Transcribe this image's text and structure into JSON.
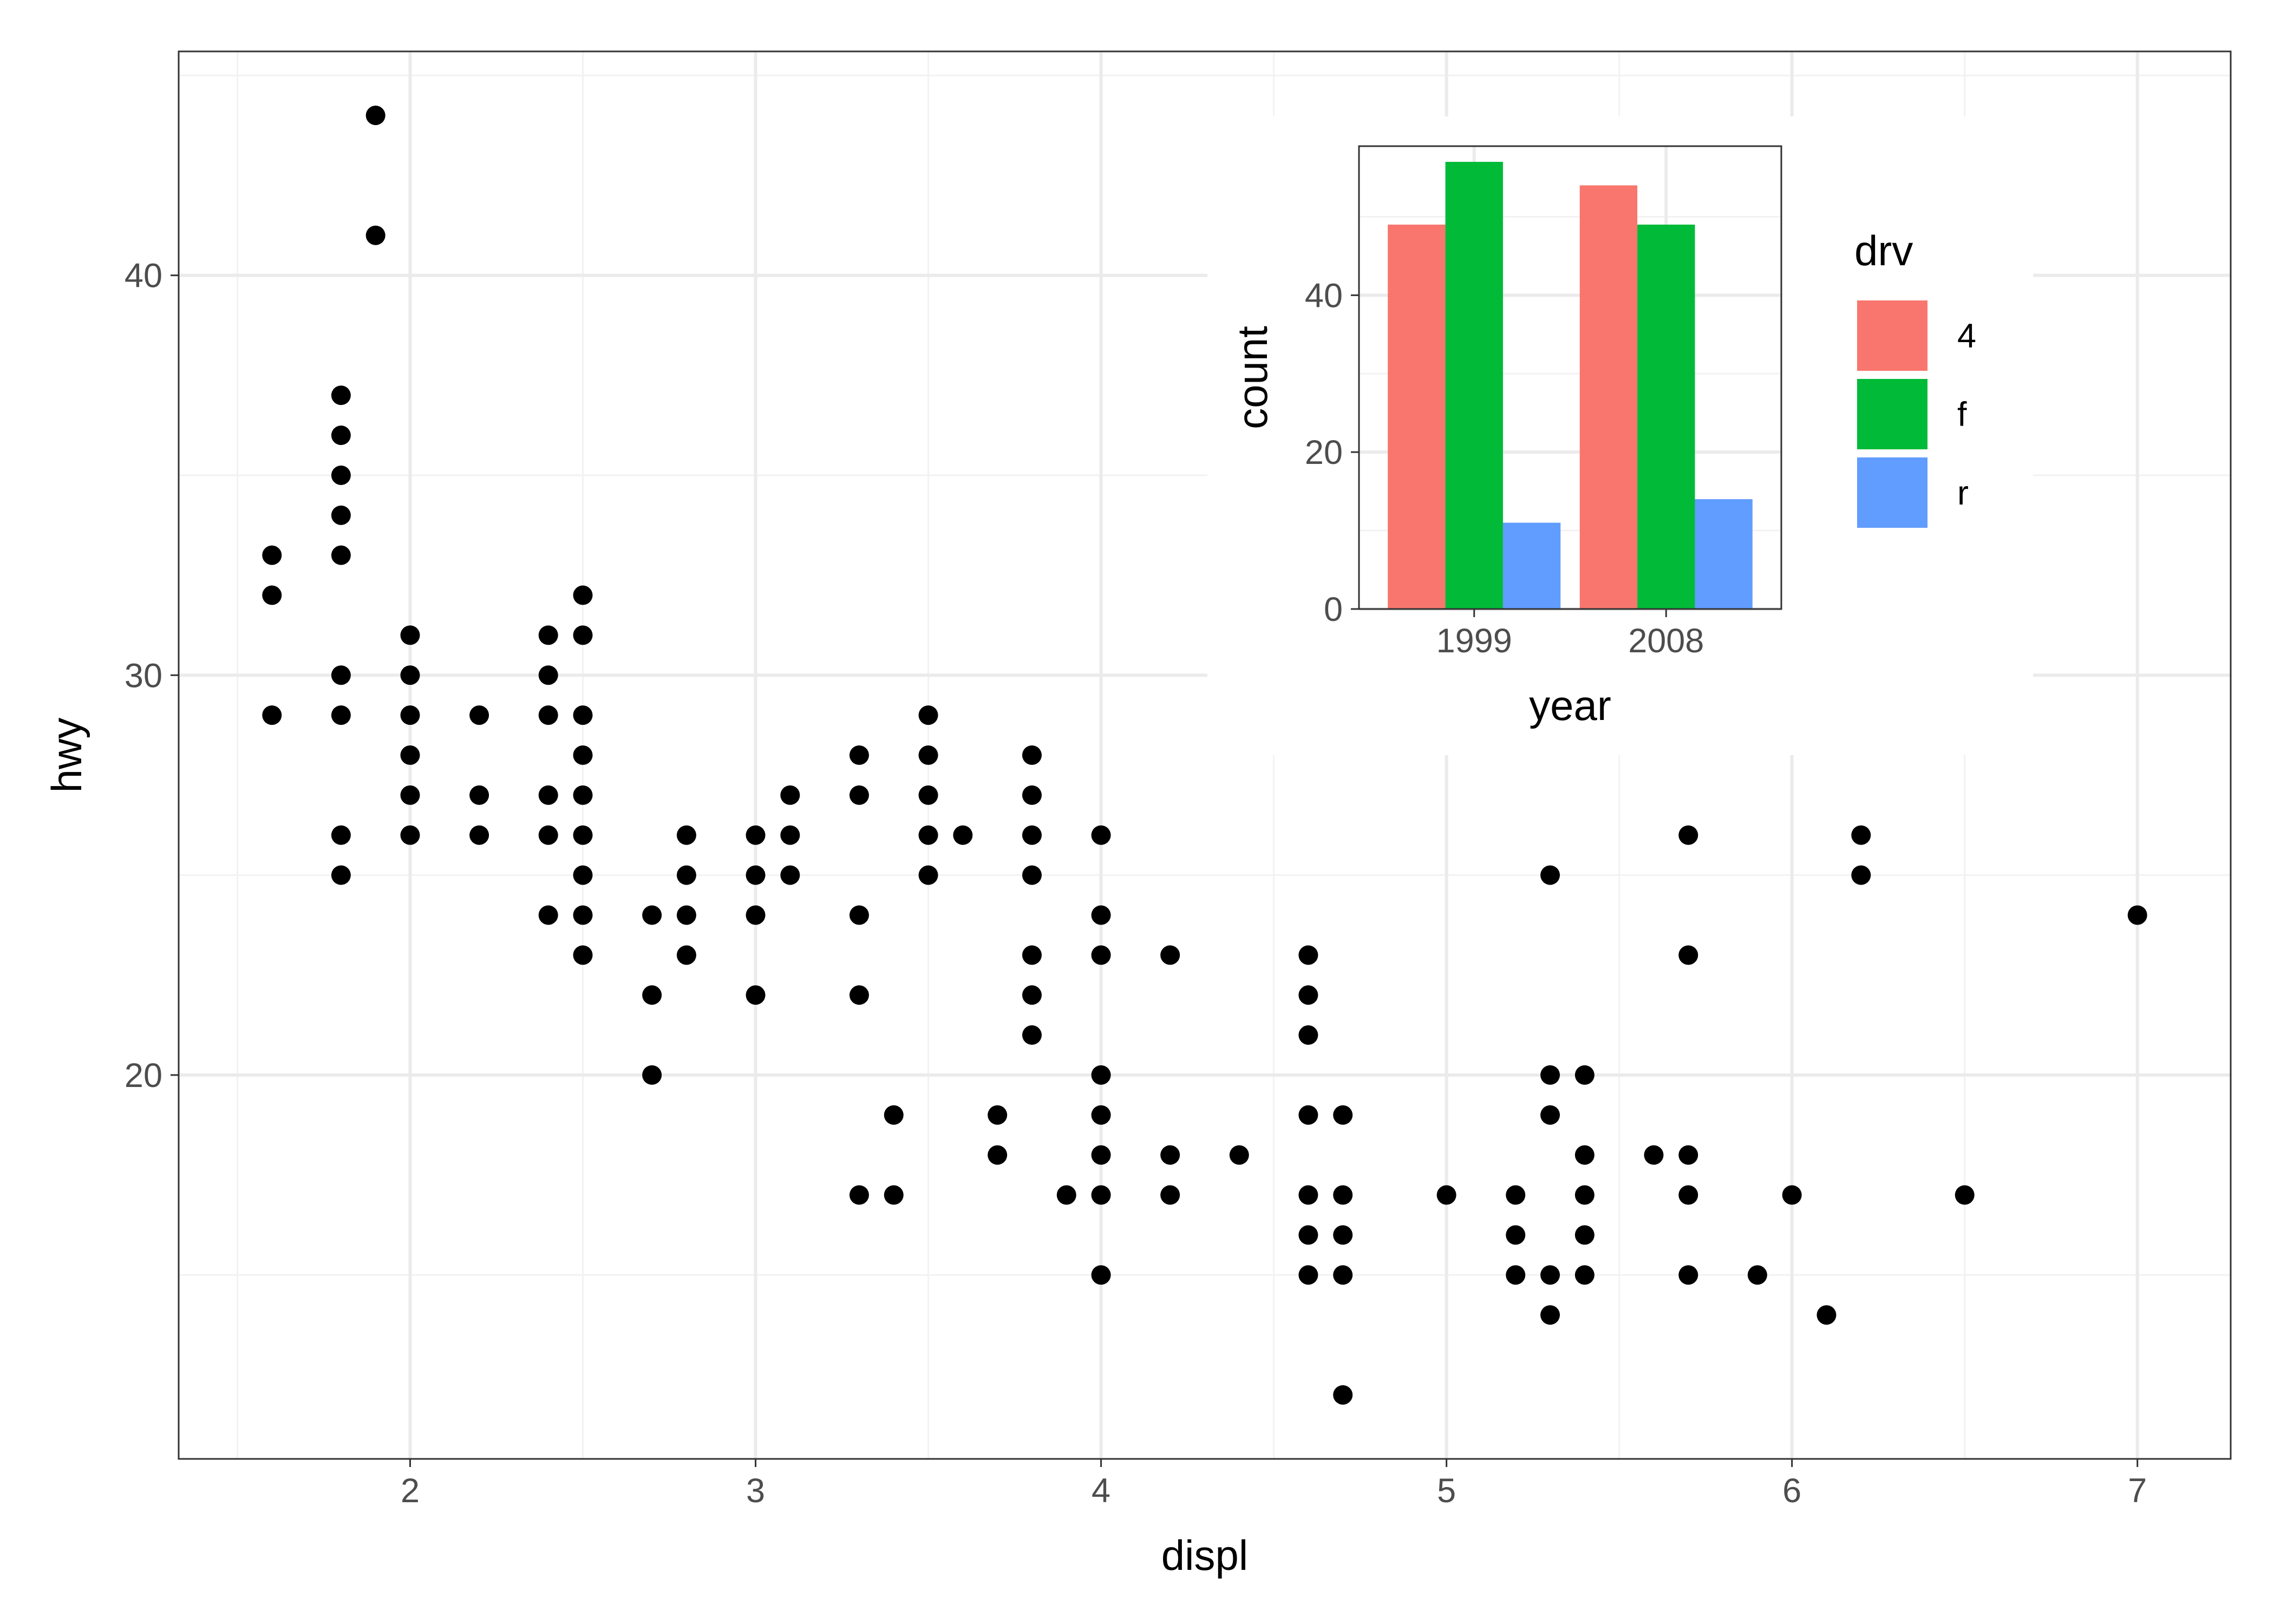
{
  "chart_data": [
    {
      "type": "scatter",
      "title": "",
      "xlabel": "displ",
      "ylabel": "hwy",
      "xlim": [
        1.33,
        7.27
      ],
      "ylim": [
        10.4,
        45.6
      ],
      "x_ticks": [
        "2",
        "3",
        "4",
        "5",
        "6",
        "7"
      ],
      "y_ticks": [
        "20",
        "30",
        "40"
      ],
      "x_tick_values": [
        2,
        3,
        4,
        5,
        6,
        7
      ],
      "y_tick_values": [
        20,
        30,
        40
      ],
      "grid": true,
      "point_color": "#000000",
      "points": [
        [
          1.6,
          33
        ],
        [
          1.6,
          32
        ],
        [
          1.6,
          29
        ],
        [
          1.8,
          37
        ],
        [
          1.8,
          36
        ],
        [
          1.8,
          35
        ],
        [
          1.8,
          34
        ],
        [
          1.8,
          33
        ],
        [
          1.8,
          30
        ],
        [
          1.8,
          29
        ],
        [
          1.8,
          26
        ],
        [
          1.8,
          25
        ],
        [
          1.9,
          44
        ],
        [
          1.9,
          41
        ],
        [
          2.0,
          31
        ],
        [
          2.0,
          30
        ],
        [
          2.0,
          29
        ],
        [
          2.0,
          28
        ],
        [
          2.0,
          27
        ],
        [
          2.0,
          26
        ],
        [
          2.2,
          29
        ],
        [
          2.2,
          27
        ],
        [
          2.2,
          26
        ],
        [
          2.4,
          31
        ],
        [
          2.4,
          30
        ],
        [
          2.4,
          29
        ],
        [
          2.4,
          27
        ],
        [
          2.4,
          26
        ],
        [
          2.4,
          24
        ],
        [
          2.5,
          32
        ],
        [
          2.5,
          31
        ],
        [
          2.5,
          29
        ],
        [
          2.5,
          28
        ],
        [
          2.5,
          27
        ],
        [
          2.5,
          26
        ],
        [
          2.5,
          25
        ],
        [
          2.5,
          24
        ],
        [
          2.5,
          23
        ],
        [
          2.7,
          24
        ],
        [
          2.7,
          22
        ],
        [
          2.7,
          20
        ],
        [
          2.8,
          26
        ],
        [
          2.8,
          25
        ],
        [
          2.8,
          24
        ],
        [
          2.8,
          23
        ],
        [
          3.0,
          26
        ],
        [
          3.0,
          25
        ],
        [
          3.0,
          24
        ],
        [
          3.0,
          22
        ],
        [
          3.1,
          27
        ],
        [
          3.1,
          26
        ],
        [
          3.1,
          25
        ],
        [
          3.3,
          28
        ],
        [
          3.3,
          27
        ],
        [
          3.3,
          24
        ],
        [
          3.3,
          22
        ],
        [
          3.3,
          17
        ],
        [
          3.4,
          19
        ],
        [
          3.4,
          17
        ],
        [
          3.5,
          29
        ],
        [
          3.5,
          28
        ],
        [
          3.5,
          27
        ],
        [
          3.5,
          26
        ],
        [
          3.5,
          25
        ],
        [
          3.6,
          26
        ],
        [
          3.7,
          19
        ],
        [
          3.7,
          18
        ],
        [
          3.8,
          28
        ],
        [
          3.8,
          27
        ],
        [
          3.8,
          26
        ],
        [
          3.8,
          25
        ],
        [
          3.8,
          23
        ],
        [
          3.8,
          22
        ],
        [
          3.8,
          21
        ],
        [
          3.9,
          17
        ],
        [
          4.0,
          26
        ],
        [
          4.0,
          24
        ],
        [
          4.0,
          23
        ],
        [
          4.0,
          20
        ],
        [
          4.0,
          19
        ],
        [
          4.0,
          18
        ],
        [
          4.0,
          17
        ],
        [
          4.0,
          15
        ],
        [
          4.2,
          23
        ],
        [
          4.2,
          18
        ],
        [
          4.2,
          17
        ],
        [
          4.4,
          18
        ],
        [
          4.6,
          23
        ],
        [
          4.6,
          22
        ],
        [
          4.6,
          21
        ],
        [
          4.6,
          19
        ],
        [
          4.6,
          17
        ],
        [
          4.6,
          16
        ],
        [
          4.6,
          15
        ],
        [
          4.7,
          19
        ],
        [
          4.7,
          17
        ],
        [
          4.7,
          16
        ],
        [
          4.7,
          15
        ],
        [
          4.7,
          12
        ],
        [
          5.0,
          17
        ],
        [
          5.2,
          17
        ],
        [
          5.2,
          16
        ],
        [
          5.2,
          15
        ],
        [
          5.3,
          25
        ],
        [
          5.3,
          20
        ],
        [
          5.3,
          19
        ],
        [
          5.3,
          15
        ],
        [
          5.3,
          14
        ],
        [
          5.4,
          20
        ],
        [
          5.4,
          18
        ],
        [
          5.4,
          17
        ],
        [
          5.4,
          16
        ],
        [
          5.4,
          15
        ],
        [
          5.6,
          18
        ],
        [
          5.7,
          26
        ],
        [
          5.7,
          23
        ],
        [
          5.7,
          18
        ],
        [
          5.7,
          17
        ],
        [
          5.7,
          15
        ],
        [
          5.9,
          15
        ],
        [
          6.0,
          17
        ],
        [
          6.1,
          14
        ],
        [
          6.2,
          26
        ],
        [
          6.2,
          25
        ],
        [
          6.5,
          17
        ],
        [
          7.0,
          24
        ]
      ]
    },
    {
      "type": "bar",
      "title": "",
      "xlabel": "year",
      "ylabel": "count",
      "categories": [
        "1999",
        "2008"
      ],
      "ylim": [
        0,
        59
      ],
      "y_ticks": [
        "0",
        "20",
        "40"
      ],
      "y_tick_values": [
        0,
        20,
        40
      ],
      "grid": true,
      "legend": {
        "title": "drv",
        "placement": "right",
        "entries": [
          "4",
          "f",
          "r"
        ]
      },
      "series": [
        {
          "name": "4",
          "color": "#F8766D",
          "values": [
            49,
            54
          ]
        },
        {
          "name": "f",
          "color": "#00BA38",
          "values": [
            57,
            49
          ]
        },
        {
          "name": "r",
          "color": "#619CFF",
          "values": [
            11,
            14
          ]
        }
      ]
    }
  ]
}
